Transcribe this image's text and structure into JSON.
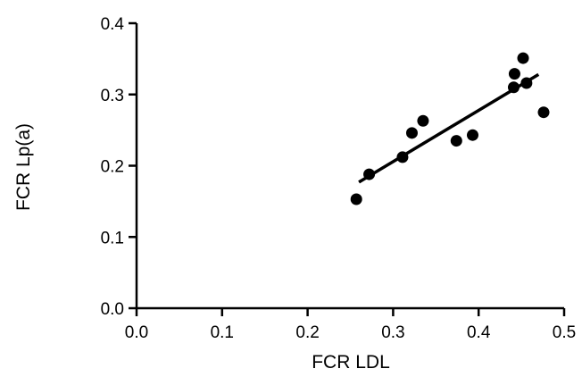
{
  "chart_data": {
    "type": "scatter",
    "title": "",
    "xlabel": "FCR LDL",
    "ylabel": "FCR Lp(a)",
    "xlim": [
      0.0,
      0.5
    ],
    "ylim": [
      0.0,
      0.4
    ],
    "x_ticks": [
      "0.0",
      "0.1",
      "0.2",
      "0.3",
      "0.4",
      "0.5"
    ],
    "y_ticks": [
      "0.0",
      "0.1",
      "0.2",
      "0.3",
      "0.4"
    ],
    "grid": false,
    "legend": "none",
    "series": [
      {
        "points": [
          {
            "x": 0.257,
            "y": 0.153
          },
          {
            "x": 0.272,
            "y": 0.188
          },
          {
            "x": 0.311,
            "y": 0.212
          },
          {
            "x": 0.322,
            "y": 0.246
          },
          {
            "x": 0.335,
            "y": 0.263
          },
          {
            "x": 0.374,
            "y": 0.235
          },
          {
            "x": 0.393,
            "y": 0.243
          },
          {
            "x": 0.441,
            "y": 0.31
          },
          {
            "x": 0.442,
            "y": 0.329
          },
          {
            "x": 0.452,
            "y": 0.351
          },
          {
            "x": 0.456,
            "y": 0.316
          },
          {
            "x": 0.476,
            "y": 0.275
          }
        ],
        "color": "#000000"
      }
    ],
    "regression_line": {
      "x": [
        0.26,
        0.47
      ],
      "y": [
        0.177,
        0.328
      ],
      "color": "#000000"
    }
  }
}
